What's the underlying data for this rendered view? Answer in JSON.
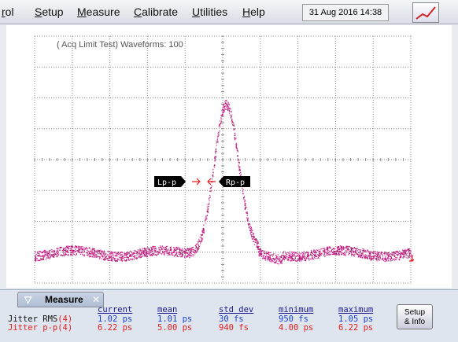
{
  "menu": [
    "rol",
    "Setup",
    "Measure",
    "Calibrate",
    "Utilities",
    "Help"
  ],
  "datetime": "31 Aug 2016  14:38",
  "screen": {
    "label": "( Acq Limit Test)  Waveforms: 100",
    "markers": [
      "Lp-p",
      "Rp-p"
    ]
  },
  "measure": {
    "title": "Measure",
    "columns": [
      "current",
      "mean",
      "std dev",
      "minimum",
      "maximum"
    ],
    "rows": [
      {
        "name": "Jitter RMS",
        "channel": "(4)",
        "values": [
          "1.02 ps",
          "1.01 ps",
          "30 fs",
          "950 fs",
          "1.05 ps"
        ]
      },
      {
        "name": "Jitter p-p",
        "channel": "(4)",
        "values": [
          "6.22 ps",
          "5.00 ps",
          "940 fs",
          "4.00 ps",
          "6.22 ps"
        ]
      }
    ],
    "button": [
      "Setup",
      "& Info"
    ]
  }
}
